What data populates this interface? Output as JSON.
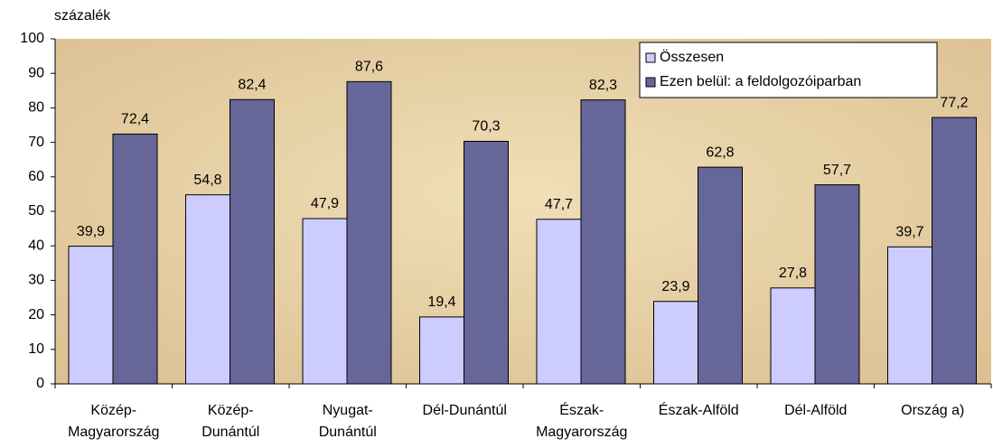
{
  "chart_data": {
    "type": "bar",
    "y_label": "százalék",
    "categories": [
      [
        "Közép-",
        "Magyarország"
      ],
      [
        "Közép-",
        "Dunántúl"
      ],
      [
        "Nyugat-",
        "Dunántúl"
      ],
      [
        "Dél-Dunántúl"
      ],
      [
        "Észak-",
        "Magyarország"
      ],
      [
        "Észak-Alföld"
      ],
      [
        "Dél-Alföld"
      ],
      [
        "Ország a)"
      ]
    ],
    "series": [
      {
        "name": "Összesen",
        "color": "#ccccff",
        "values": [
          39.9,
          54.8,
          47.9,
          19.4,
          47.7,
          23.9,
          27.8,
          39.7
        ],
        "value_labels": [
          "39,9",
          "54,8",
          "47,9",
          "19,4",
          "47,7",
          "23,9",
          "27,8",
          "39,7"
        ]
      },
      {
        "name": "Ezen belül: a feldolgozóiparban",
        "color": "#666699",
        "values": [
          72.4,
          82.4,
          87.6,
          70.3,
          82.3,
          62.8,
          57.7,
          77.2
        ],
        "value_labels": [
          "72,4",
          "82,4",
          "87,6",
          "70,3",
          "82,3",
          "62,8",
          "57,7",
          "77,2"
        ]
      }
    ],
    "ylim": [
      0,
      100
    ],
    "yticks": [
      0,
      10,
      20,
      30,
      40,
      50,
      60,
      70,
      80,
      90,
      100
    ],
    "grid": false,
    "legend": "top-right"
  }
}
